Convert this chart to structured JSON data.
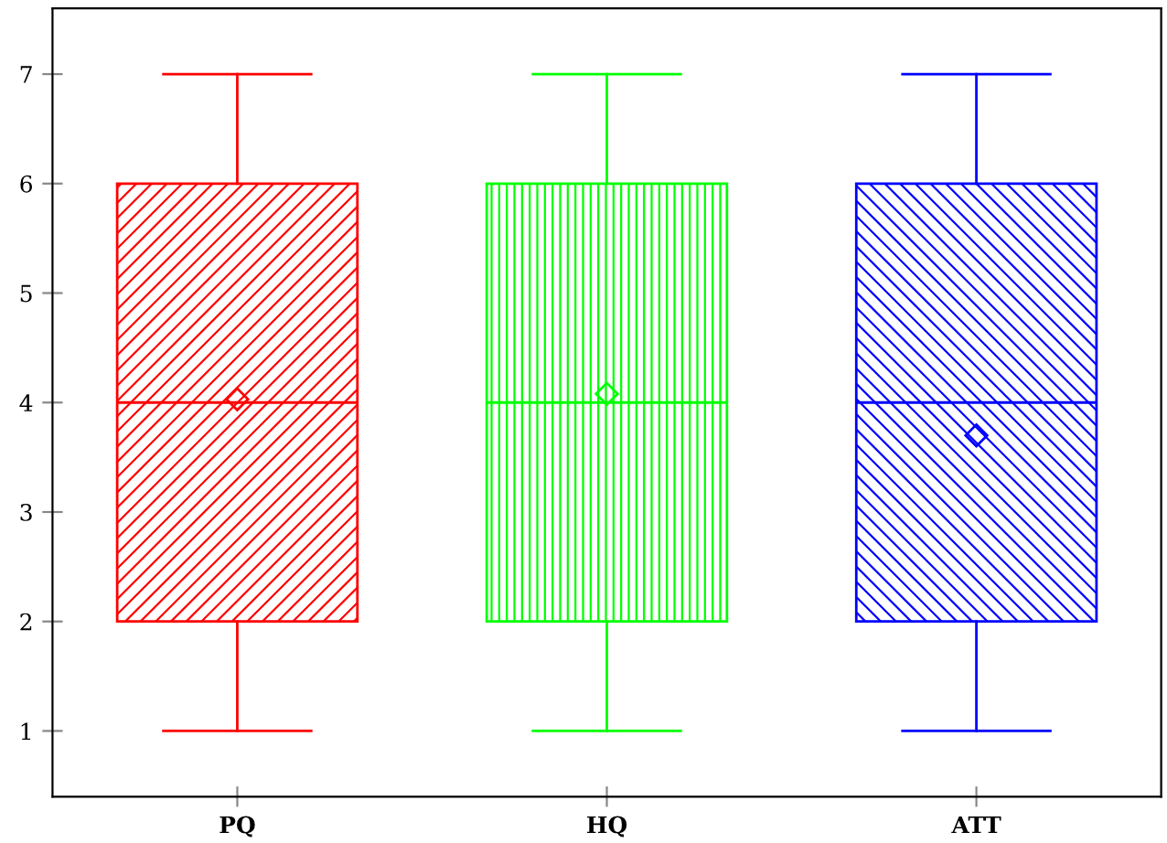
{
  "chart_data": {
    "type": "box",
    "categories": [
      "PQ",
      "HQ",
      "ATT"
    ],
    "boxes": [
      {
        "low": 1,
        "q1": 2,
        "median": 4,
        "q3": 6,
        "high": 7,
        "mean": 4.03
      },
      {
        "low": 1,
        "q1": 2,
        "median": 4,
        "q3": 6,
        "high": 7,
        "mean": 4.08
      },
      {
        "low": 1,
        "q1": 2,
        "median": 4,
        "q3": 6,
        "high": 7,
        "mean": 3.7
      }
    ],
    "colors": [
      "#ff0000",
      "#00ff00",
      "#0000ff"
    ],
    "ylim": [
      0.4,
      7.6
    ],
    "yticks": [
      1,
      2,
      3,
      4,
      5,
      6,
      7
    ],
    "grid": false,
    "marker": "diamond"
  }
}
